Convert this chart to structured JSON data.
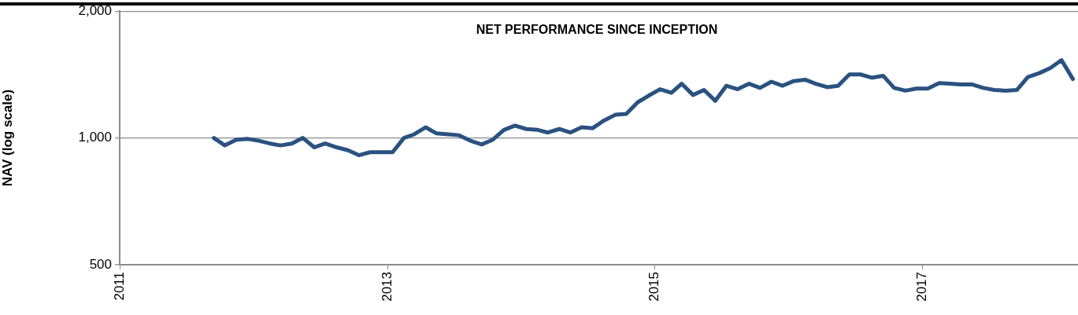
{
  "chart_data": {
    "type": "line",
    "title": "NET PERFORMANCE SINCE INCEPTION",
    "ylabel": "NAV (log scale)",
    "log": "y",
    "grid": "y",
    "marker": "none",
    "line_style": "solid",
    "xlim": [
      "2011-01-01",
      "2018-03-01"
    ],
    "xticks": [
      "2011",
      "2013",
      "2015",
      "2017"
    ],
    "ylim": [
      500,
      2000
    ],
    "yticks": [
      500,
      {
        "value": 1000,
        "label": "1,000"
      },
      {
        "value": 2000,
        "label": "2,000"
      }
    ],
    "x": [
      "2011-09-15",
      "2011-10-15",
      "2011-11-15",
      "2011-12-15",
      "2012-01-15",
      "2012-02-15",
      "2012-03-15",
      "2012-04-15",
      "2012-05-15",
      "2012-06-15",
      "2012-07-15",
      "2012-08-15",
      "2012-09-15",
      "2012-10-15",
      "2012-11-15",
      "2012-12-15",
      "2013-01-15",
      "2013-02-15",
      "2013-03-15",
      "2013-04-15",
      "2013-05-15",
      "2013-06-15",
      "2013-07-15",
      "2013-08-15",
      "2013-09-15",
      "2013-10-15",
      "2013-11-15",
      "2013-12-15",
      "2014-01-15",
      "2014-02-15",
      "2014-03-15",
      "2014-04-15",
      "2014-05-15",
      "2014-06-15",
      "2014-07-15",
      "2014-08-15",
      "2014-09-15",
      "2014-10-15",
      "2014-11-15",
      "2014-12-15",
      "2015-01-15",
      "2015-02-15",
      "2015-03-15",
      "2015-04-15",
      "2015-05-15",
      "2015-06-15",
      "2015-07-15",
      "2015-08-15",
      "2015-09-15",
      "2015-10-15",
      "2015-11-15",
      "2015-12-15",
      "2016-01-15",
      "2016-02-15",
      "2016-03-15",
      "2016-04-15",
      "2016-05-15",
      "2016-06-15",
      "2016-07-15",
      "2016-08-15",
      "2016-09-15",
      "2016-10-15",
      "2016-11-15",
      "2016-12-15",
      "2017-01-15",
      "2017-02-15",
      "2017-03-15",
      "2017-04-15",
      "2017-05-15",
      "2017-06-15",
      "2017-07-15",
      "2017-08-15",
      "2017-09-15",
      "2017-10-15",
      "2017-11-15",
      "2017-12-15",
      "2018-01-15",
      "2018-02-15"
    ],
    "series": [
      {
        "color": "#2a5280",
        "values": [
          1000,
          960,
          990,
          995,
          985,
          970,
          960,
          970,
          1000,
          950,
          970,
          950,
          935,
          910,
          925,
          925,
          925,
          1000,
          1020,
          1060,
          1025,
          1020,
          1015,
          985,
          965,
          990,
          1045,
          1070,
          1050,
          1045,
          1030,
          1050,
          1030,
          1060,
          1055,
          1100,
          1135,
          1140,
          1215,
          1260,
          1305,
          1280,
          1345,
          1265,
          1300,
          1225,
          1330,
          1305,
          1345,
          1315,
          1360,
          1330,
          1365,
          1375,
          1345,
          1320,
          1330,
          1415,
          1415,
          1390,
          1405,
          1315,
          1295,
          1310,
          1310,
          1350,
          1345,
          1340,
          1340,
          1315,
          1300,
          1295,
          1300,
          1395,
          1425,
          1465,
          1530,
          1380
        ]
      }
    ]
  }
}
